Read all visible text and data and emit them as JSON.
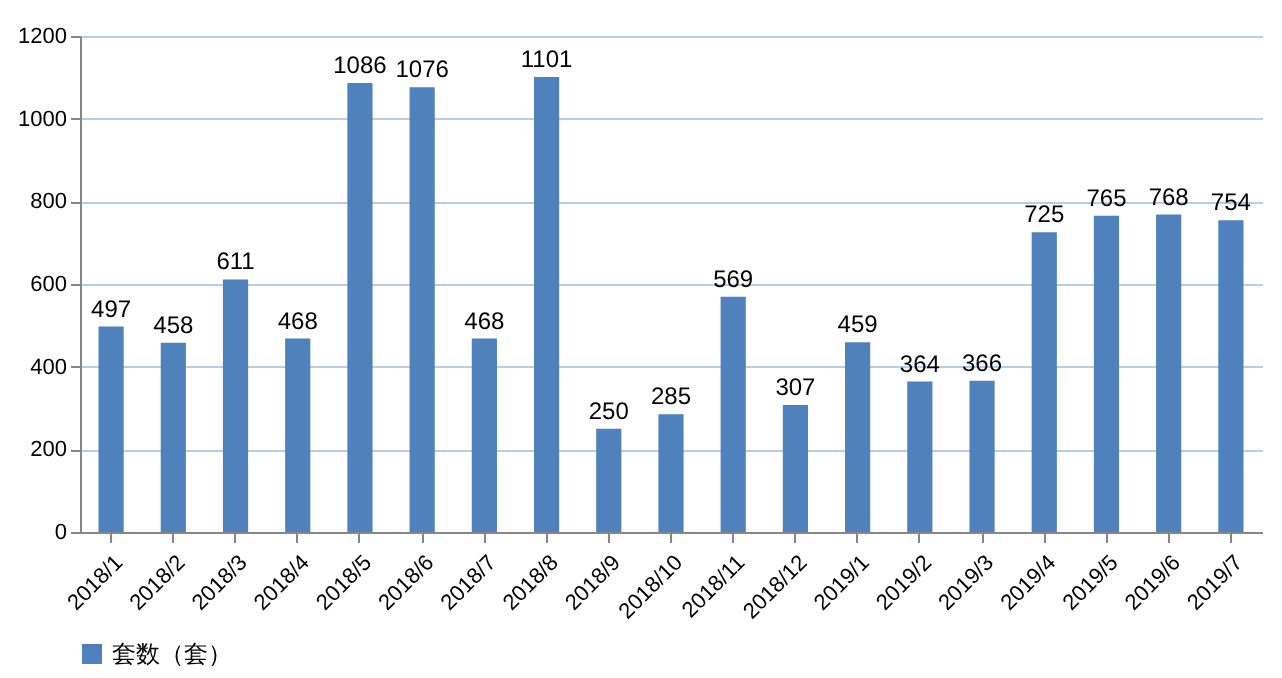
{
  "chart_data": {
    "type": "bar",
    "categories": [
      "2018/1",
      "2018/2",
      "2018/3",
      "2018/4",
      "2018/5",
      "2018/6",
      "2018/7",
      "2018/8",
      "2018/9",
      "2018/10",
      "2018/11",
      "2018/12",
      "2019/1",
      "2019/2",
      "2019/3",
      "2019/4",
      "2019/5",
      "2019/6",
      "2019/7"
    ],
    "series": [
      {
        "name": "套数（套）",
        "color": "#4f81bd",
        "values": [
          497,
          458,
          611,
          468,
          1086,
          1076,
          468,
          1101,
          250,
          285,
          569,
          307,
          459,
          364,
          366,
          725,
          765,
          768,
          754
        ]
      }
    ],
    "ylim": [
      0,
      1200
    ],
    "yticks": [
      0,
      200,
      400,
      600,
      800,
      1000,
      1200
    ],
    "grid": "y",
    "legend": "bottom",
    "data_labels": true
  }
}
